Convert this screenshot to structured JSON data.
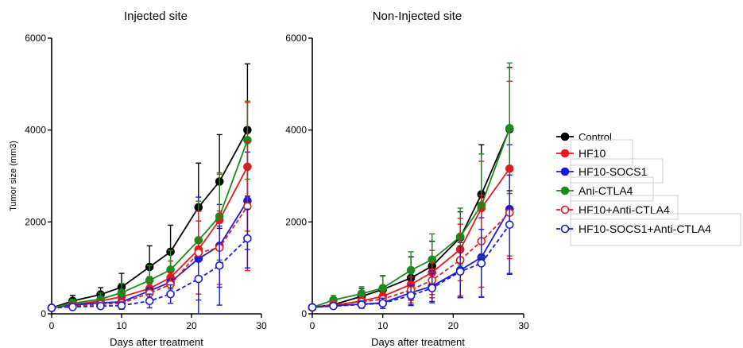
{
  "chart_data": [
    {
      "type": "line",
      "title": "Injected site",
      "xlabel": "Days after treatment",
      "ylabel": "Tumor size (mm3)",
      "xlim": [
        0,
        30
      ],
      "ylim": [
        0,
        6000
      ],
      "xticks": [
        0,
        10,
        20,
        30
      ],
      "yticks": [
        0,
        2000,
        4000,
        6000
      ],
      "x": [
        0,
        3,
        7,
        10,
        14,
        17,
        21,
        24,
        28
      ],
      "series": [
        {
          "name": "Control",
          "color": "#000000",
          "dashed": false,
          "filled": true,
          "values": [
            130,
            280,
            420,
            580,
            1020,
            1350,
            2320,
            2880,
            4000
          ],
          "err": [
            40,
            120,
            150,
            300,
            460,
            580,
            960,
            1020,
            1440
          ]
        },
        {
          "name": "HF10",
          "color": "#e31a1c",
          "dashed": false,
          "filled": true,
          "values": [
            130,
            200,
            280,
            370,
            550,
            790,
            1400,
            2040,
            3200
          ],
          "err": [
            40,
            80,
            110,
            160,
            260,
            360,
            620,
            1000,
            1400
          ]
        },
        {
          "name": "HF10-SOCS1",
          "color": "#1a1ad6",
          "dashed": false,
          "filled": true,
          "values": [
            130,
            190,
            240,
            260,
            500,
            690,
            1200,
            1480,
            2460
          ],
          "err": [
            40,
            70,
            90,
            120,
            230,
            300,
            1340,
            900,
            1060
          ]
        },
        {
          "name": "Ani-CTLA4",
          "color": "#1b8a1b",
          "dashed": false,
          "filled": true,
          "values": [
            130,
            230,
            320,
            460,
            730,
            960,
            1600,
            2120,
            3780
          ],
          "err": [
            40,
            90,
            130,
            200,
            320,
            420,
            850,
            950,
            850
          ]
        },
        {
          "name": "HF10+Anti-CTLA4",
          "color": "#e31a1c",
          "dashed": true,
          "filled": false,
          "values": [
            130,
            170,
            210,
            230,
            450,
            640,
            1330,
            1440,
            2340
          ],
          "err": [
            40,
            60,
            80,
            100,
            200,
            270,
            900,
            800,
            1400
          ]
        },
        {
          "name": "HF10-SOCS1+Anti-CTLA4",
          "color": "#1a1ad6",
          "dashed": true,
          "filled": false,
          "values": [
            130,
            150,
            170,
            180,
            280,
            430,
            760,
            1050,
            1640
          ],
          "err": [
            40,
            50,
            60,
            80,
            150,
            200,
            460,
            860,
            640
          ]
        }
      ]
    },
    {
      "type": "line",
      "title": "Non-Injected site",
      "xlabel": "Days after treatment",
      "ylabel": "",
      "xlim": [
        0,
        30
      ],
      "ylim": [
        0,
        6000
      ],
      "xticks": [
        0,
        10,
        20,
        30
      ],
      "yticks": [
        0,
        2000,
        4000,
        6000
      ],
      "x": [
        0,
        3,
        7,
        10,
        14,
        17,
        21,
        24,
        28
      ],
      "series": [
        {
          "name": "Control",
          "color": "#000000",
          "dashed": false,
          "filled": true,
          "values": [
            140,
            200,
            380,
            530,
            780,
            1040,
            1660,
            2600,
            4020
          ],
          "err": [
            40,
            80,
            170,
            300,
            460,
            540,
            560,
            1080,
            1340
          ]
        },
        {
          "name": "HF10",
          "color": "#e31a1c",
          "dashed": false,
          "filled": true,
          "values": [
            140,
            180,
            280,
            380,
            640,
            900,
            1400,
            2300,
            3160
          ],
          "err": [
            40,
            70,
            120,
            200,
            350,
            480,
            680,
            1020,
            1900
          ]
        },
        {
          "name": "HF10-SOCS1",
          "color": "#1a1ad6",
          "dashed": false,
          "filled": true,
          "values": [
            140,
            180,
            210,
            240,
            460,
            600,
            950,
            1230,
            2280
          ],
          "err": [
            40,
            60,
            80,
            120,
            260,
            330,
            600,
            860,
            1400
          ]
        },
        {
          "name": "Ani-CTLA4",
          "color": "#1b8a1b",
          "dashed": false,
          "filled": true,
          "values": [
            140,
            300,
            440,
            560,
            950,
            1180,
            1680,
            2360,
            4040
          ],
          "err": [
            40,
            100,
            150,
            260,
            400,
            560,
            620,
            1120,
            1420
          ]
        },
        {
          "name": "HF10+Anti-CTLA4",
          "color": "#e31a1c",
          "dashed": true,
          "filled": false,
          "values": [
            140,
            200,
            260,
            320,
            520,
            730,
            1170,
            1580,
            2200
          ],
          "err": [
            40,
            70,
            100,
            140,
            280,
            380,
            780,
            1000,
            1000
          ]
        },
        {
          "name": "HF10-SOCS1+Anti-CTLA4",
          "color": "#1a1ad6",
          "dashed": true,
          "filled": false,
          "values": [
            140,
            170,
            200,
            230,
            400,
            560,
            920,
            1100,
            1940
          ],
          "err": [
            40,
            60,
            80,
            110,
            220,
            320,
            560,
            740,
            1080
          ]
        }
      ]
    }
  ],
  "legend": {
    "position": "right",
    "items": [
      {
        "label": "Control",
        "color": "#000000",
        "dashed": false,
        "filled": true
      },
      {
        "label": "HF10",
        "color": "#e31a1c",
        "dashed": false,
        "filled": true
      },
      {
        "label": "HF10-SOCS1",
        "color": "#1a1ad6",
        "dashed": false,
        "filled": true
      },
      {
        "label": "Ani-CTLA4",
        "color": "#1b8a1b",
        "dashed": false,
        "filled": true
      },
      {
        "label": "HF10+Anti-CTLA4",
        "color": "#e31a1c",
        "dashed": true,
        "filled": false
      },
      {
        "label": "HF10-SOCS1+Anti-CTLA4",
        "color": "#1a1ad6",
        "dashed": true,
        "filled": false
      }
    ]
  }
}
